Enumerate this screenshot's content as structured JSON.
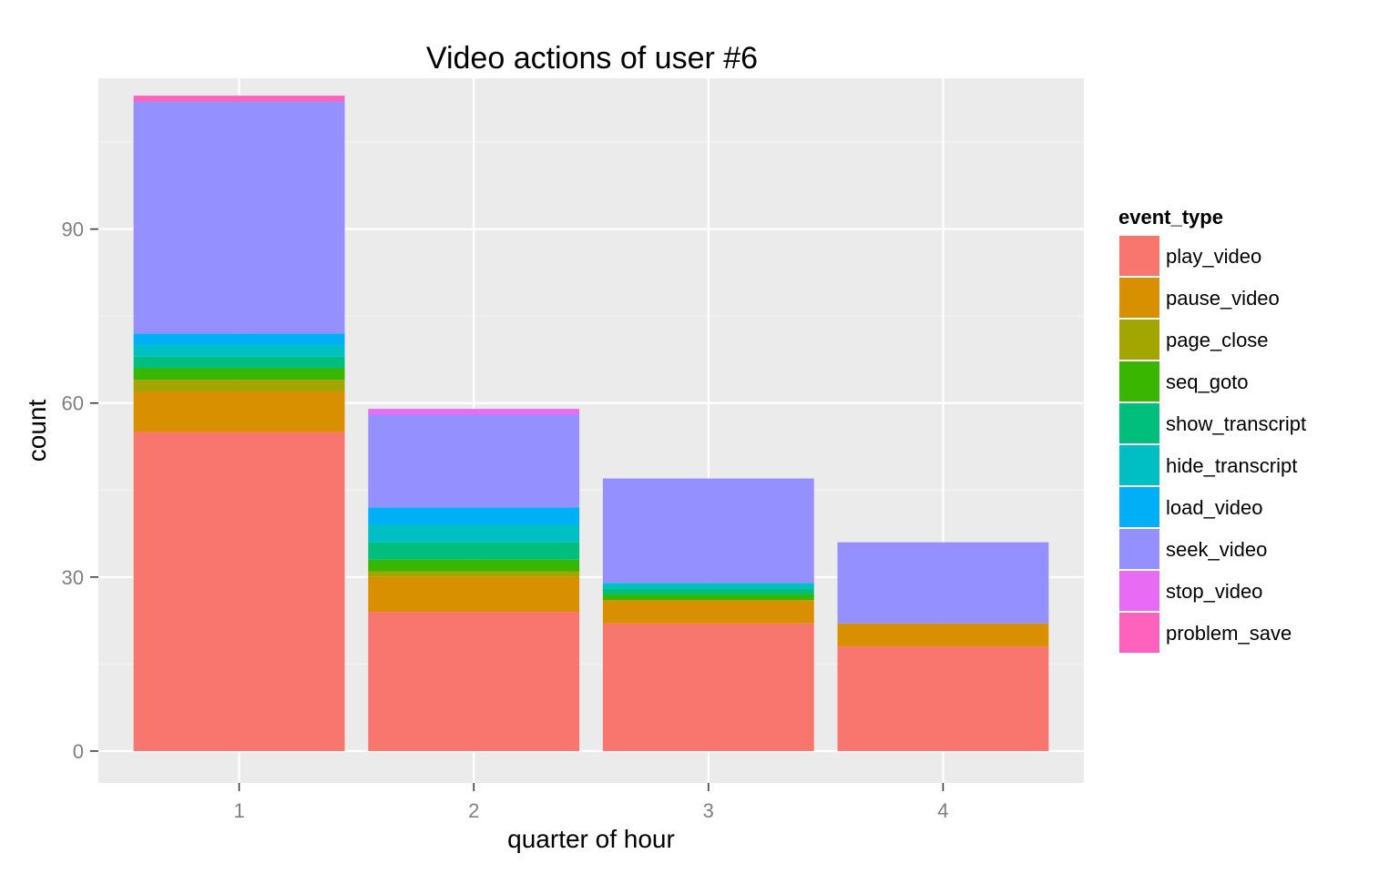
{
  "chart_data": {
    "type": "bar",
    "stacked": true,
    "title": "Video actions of user #6",
    "xlabel": "quarter of hour",
    "ylabel": "count",
    "categories": [
      "1",
      "2",
      "3",
      "4"
    ],
    "yticks": [
      "0",
      "30",
      "60",
      "90"
    ],
    "ylim": [
      -5.5,
      116
    ],
    "grid": true,
    "legend": {
      "title": "event_type",
      "position": "right"
    },
    "series": [
      {
        "name": "play_video",
        "color": "#F8766D",
        "values": [
          55,
          24,
          22,
          18
        ]
      },
      {
        "name": "pause_video",
        "color": "#D89000",
        "values": [
          7,
          6,
          4,
          4
        ]
      },
      {
        "name": "page_close",
        "color": "#A3A500",
        "values": [
          2,
          1,
          0,
          0
        ]
      },
      {
        "name": "seq_goto",
        "color": "#39B600",
        "values": [
          2,
          2,
          1,
          0
        ]
      },
      {
        "name": "show_transcript",
        "color": "#00BF7D",
        "values": [
          2,
          3,
          1,
          0
        ]
      },
      {
        "name": "hide_transcript",
        "color": "#00BFC4",
        "values": [
          2,
          3,
          1,
          0
        ]
      },
      {
        "name": "load_video",
        "color": "#00B0F6",
        "values": [
          2,
          3,
          0,
          0
        ]
      },
      {
        "name": "seek_video",
        "color": "#9590FF",
        "values": [
          40,
          16,
          18,
          14
        ]
      },
      {
        "name": "stop_video",
        "color": "#E76BF3",
        "values": [
          0,
          1,
          0,
          0
        ]
      },
      {
        "name": "problem_save",
        "color": "#FF62BC",
        "values": [
          1,
          0,
          0,
          0
        ]
      }
    ]
  }
}
